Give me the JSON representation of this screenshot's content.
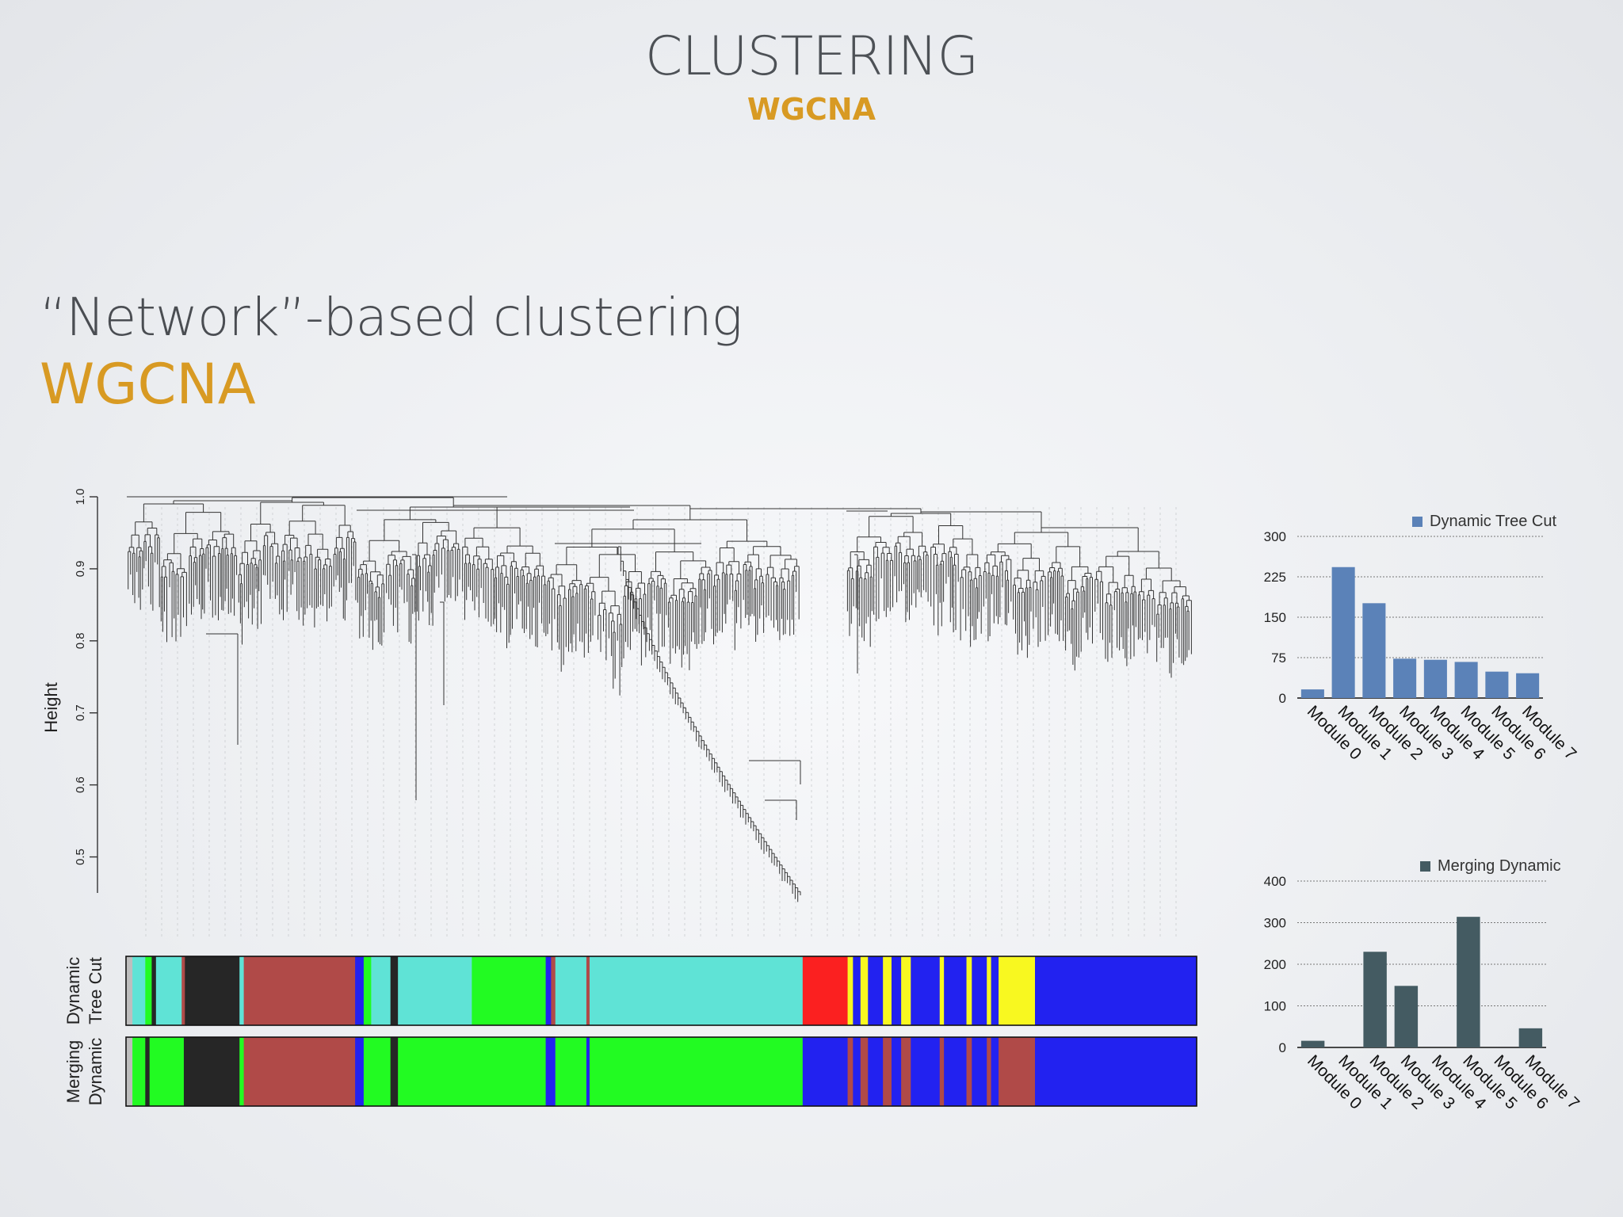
{
  "slide": {
    "title": "CLUSTERING",
    "subtitle": "WGCNA",
    "heading": "“Network”-based clustering",
    "method": "WGCNA"
  },
  "colors": {
    "accent": "#d89a23",
    "text": "#4a4d52",
    "dynamic_bar": "#5b82b8",
    "merging_bar": "#445b62",
    "modules": {
      "turquoise": "#5fe3d6",
      "black": "#262626",
      "brown": "#b04a48",
      "green": "#22fb22",
      "red": "#fb2020",
      "yellow": "#f8f820",
      "blue": "#2222f0",
      "grey": "#bebebe"
    }
  },
  "chart_data": [
    {
      "type": "dendrogram",
      "ylabel": "Height",
      "ylim": [
        0.45,
        1.0
      ],
      "yticks": [
        "0.5",
        "0.6",
        "0.7",
        "0.8",
        "0.9",
        "1.0"
      ],
      "color_rows": [
        {
          "label_lines": [
            "Dynamic",
            "Tree Cut"
          ],
          "segments": [
            {
              "color": "grey",
              "from": 0.0,
              "to": 0.006
            },
            {
              "color": "turquoise",
              "from": 0.006,
              "to": 0.018
            },
            {
              "color": "green",
              "from": 0.018,
              "to": 0.024
            },
            {
              "color": "black",
              "from": 0.024,
              "to": 0.028
            },
            {
              "color": "turquoise",
              "from": 0.028,
              "to": 0.052
            },
            {
              "color": "brown",
              "from": 0.052,
              "to": 0.055
            },
            {
              "color": "black",
              "from": 0.055,
              "to": 0.106
            },
            {
              "color": "turquoise",
              "from": 0.106,
              "to": 0.11
            },
            {
              "color": "brown",
              "from": 0.11,
              "to": 0.214
            },
            {
              "color": "blue",
              "from": 0.214,
              "to": 0.222
            },
            {
              "color": "green",
              "from": 0.222,
              "to": 0.229
            },
            {
              "color": "turquoise",
              "from": 0.229,
              "to": 0.247
            },
            {
              "color": "black",
              "from": 0.247,
              "to": 0.254
            },
            {
              "color": "turquoise",
              "from": 0.254,
              "to": 0.323
            },
            {
              "color": "green",
              "from": 0.323,
              "to": 0.392
            },
            {
              "color": "blue",
              "from": 0.392,
              "to": 0.397
            },
            {
              "color": "brown",
              "from": 0.397,
              "to": 0.401
            },
            {
              "color": "turquoise",
              "from": 0.401,
              "to": 0.43
            },
            {
              "color": "brown",
              "from": 0.43,
              "to": 0.433
            },
            {
              "color": "turquoise",
              "from": 0.433,
              "to": 0.632
            },
            {
              "color": "red",
              "from": 0.632,
              "to": 0.674
            },
            {
              "color": "yellow",
              "from": 0.674,
              "to": 0.679
            },
            {
              "color": "blue",
              "from": 0.679,
              "to": 0.686
            },
            {
              "color": "yellow",
              "from": 0.686,
              "to": 0.693
            },
            {
              "color": "blue",
              "from": 0.693,
              "to": 0.707
            },
            {
              "color": "yellow",
              "from": 0.707,
              "to": 0.715
            },
            {
              "color": "blue",
              "from": 0.715,
              "to": 0.724
            },
            {
              "color": "yellow",
              "from": 0.724,
              "to": 0.733
            },
            {
              "color": "blue",
              "from": 0.733,
              "to": 0.76
            },
            {
              "color": "yellow",
              "from": 0.76,
              "to": 0.764
            },
            {
              "color": "blue",
              "from": 0.764,
              "to": 0.785
            },
            {
              "color": "yellow",
              "from": 0.785,
              "to": 0.79
            },
            {
              "color": "blue",
              "from": 0.79,
              "to": 0.804
            },
            {
              "color": "yellow",
              "from": 0.804,
              "to": 0.808
            },
            {
              "color": "blue",
              "from": 0.808,
              "to": 0.815
            },
            {
              "color": "yellow",
              "from": 0.815,
              "to": 0.849
            },
            {
              "color": "blue",
              "from": 0.849,
              "to": 1.0
            }
          ]
        },
        {
          "label_lines": [
            "Merging",
            "Dynamic"
          ],
          "segments": [
            {
              "color": "grey",
              "from": 0.0,
              "to": 0.006
            },
            {
              "color": "green",
              "from": 0.006,
              "to": 0.018
            },
            {
              "color": "black",
              "from": 0.018,
              "to": 0.022
            },
            {
              "color": "green",
              "from": 0.022,
              "to": 0.054
            },
            {
              "color": "black",
              "from": 0.054,
              "to": 0.106
            },
            {
              "color": "green",
              "from": 0.106,
              "to": 0.11
            },
            {
              "color": "brown",
              "from": 0.11,
              "to": 0.214
            },
            {
              "color": "blue",
              "from": 0.214,
              "to": 0.222
            },
            {
              "color": "green",
              "from": 0.222,
              "to": 0.247
            },
            {
              "color": "black",
              "from": 0.247,
              "to": 0.254
            },
            {
              "color": "green",
              "from": 0.254,
              "to": 0.392
            },
            {
              "color": "blue",
              "from": 0.392,
              "to": 0.401
            },
            {
              "color": "green",
              "from": 0.401,
              "to": 0.43
            },
            {
              "color": "blue",
              "from": 0.43,
              "to": 0.433
            },
            {
              "color": "green",
              "from": 0.433,
              "to": 0.632
            },
            {
              "color": "blue",
              "from": 0.632,
              "to": 0.674
            },
            {
              "color": "brown",
              "from": 0.674,
              "to": 0.679
            },
            {
              "color": "blue",
              "from": 0.679,
              "to": 0.686
            },
            {
              "color": "brown",
              "from": 0.686,
              "to": 0.693
            },
            {
              "color": "blue",
              "from": 0.693,
              "to": 0.707
            },
            {
              "color": "brown",
              "from": 0.707,
              "to": 0.715
            },
            {
              "color": "blue",
              "from": 0.715,
              "to": 0.724
            },
            {
              "color": "brown",
              "from": 0.724,
              "to": 0.733
            },
            {
              "color": "blue",
              "from": 0.733,
              "to": 0.76
            },
            {
              "color": "brown",
              "from": 0.76,
              "to": 0.764
            },
            {
              "color": "blue",
              "from": 0.764,
              "to": 0.785
            },
            {
              "color": "brown",
              "from": 0.785,
              "to": 0.79
            },
            {
              "color": "blue",
              "from": 0.79,
              "to": 0.804
            },
            {
              "color": "brown",
              "from": 0.804,
              "to": 0.808
            },
            {
              "color": "blue",
              "from": 0.808,
              "to": 0.815
            },
            {
              "color": "brown",
              "from": 0.815,
              "to": 0.849
            },
            {
              "color": "blue",
              "from": 0.849,
              "to": 1.0
            }
          ]
        }
      ]
    },
    {
      "type": "bar",
      "title": "Dynamic Tree Cut",
      "legend": "top-right",
      "categories": [
        "Module 0",
        "Module 1",
        "Module 2",
        "Module 3",
        "Module 4",
        "Module 5",
        "Module 6",
        "Module 7"
      ],
      "series": [
        {
          "name": "Dynamic Tree Cut",
          "values": [
            16,
            243,
            176,
            73,
            71,
            67,
            49,
            46
          ]
        }
      ],
      "ylim": [
        0,
        300
      ],
      "yticks": [
        "0",
        "75",
        "150",
        "225",
        "300"
      ],
      "grid": true
    },
    {
      "type": "bar",
      "title": "Merging Dynamic",
      "legend": "top-right",
      "categories": [
        "Module 0",
        "Module 1",
        "Module 2",
        "Module 3",
        "Module 4",
        "Module 5",
        "Module 6",
        "Module 7"
      ],
      "series": [
        {
          "name": "Merging Dynamic",
          "values": [
            16,
            0,
            230,
            148,
            0,
            314,
            0,
            46
          ]
        }
      ],
      "ylim": [
        0,
        400
      ],
      "yticks": [
        "0",
        "100",
        "200",
        "300",
        "400"
      ],
      "grid": true
    }
  ]
}
